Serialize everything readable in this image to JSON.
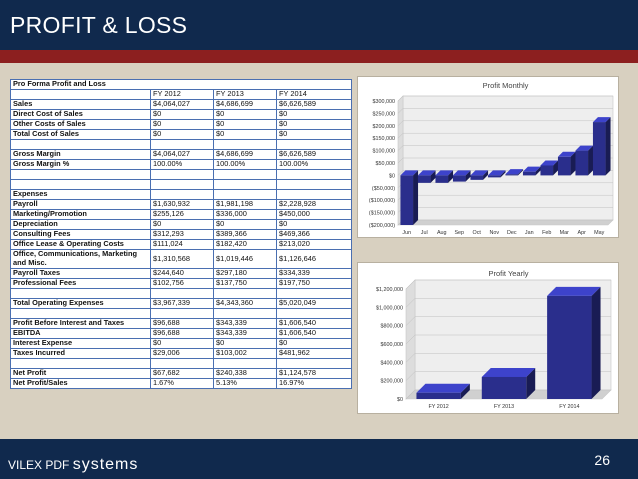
{
  "slide": {
    "title": "PROFIT & LOSS",
    "page_number": "26",
    "brand_prefix": "VILEX PDF",
    "brand_suffix": "systems",
    "colors": {
      "header": "#10294d",
      "stripe": "#8c1f1f",
      "background": "#d8d0c0",
      "bar": "#2a2e8c"
    }
  },
  "table": {
    "title": "Pro Forma Profit and Loss",
    "headers": [
      "",
      "FY 2012",
      "FY 2013",
      "FY 2014"
    ],
    "rows": [
      {
        "label": "Sales",
        "values": [
          "$4,064,027",
          "$4,686,699",
          "$6,626,589"
        ]
      },
      {
        "label": "Direct Cost of Sales",
        "values": [
          "$0",
          "$0",
          "$0"
        ]
      },
      {
        "label": "Other Costs of Sales",
        "values": [
          "$0",
          "$0",
          "$0"
        ]
      },
      {
        "label": "Total Cost of Sales",
        "values": [
          "$0",
          "$0",
          "$0"
        ]
      },
      {
        "blank": true
      },
      {
        "label": "Gross Margin",
        "values": [
          "$4,064,027",
          "$4,686,699",
          "$6,626,589"
        ]
      },
      {
        "label": "Gross Margin %",
        "values": [
          "100.00%",
          "100.00%",
          "100.00%"
        ]
      },
      {
        "blank": true
      },
      {
        "blank": true
      },
      {
        "label": "Expenses",
        "section": true,
        "values": [
          "",
          "",
          ""
        ]
      },
      {
        "label": "Payroll",
        "values": [
          "$1,630,932",
          "$1,981,198",
          "$2,228,928"
        ]
      },
      {
        "label": "Marketing/Promotion",
        "values": [
          "$255,126",
          "$336,000",
          "$450,000"
        ]
      },
      {
        "label": "Depreciation",
        "values": [
          "$0",
          "$0",
          "$0"
        ]
      },
      {
        "label": "Consulting Fees",
        "values": [
          "$312,293",
          "$389,366",
          "$469,366"
        ]
      },
      {
        "label": "Office Lease & Operating Costs",
        "values": [
          "$111,024",
          "$182,420",
          "$213,020"
        ]
      },
      {
        "label": "Office, Communications, Marketing and Misc.",
        "tall": true,
        "values": [
          "$1,310,568",
          "$1,019,446",
          "$1,126,646"
        ]
      },
      {
        "label": "Payroll Taxes",
        "values": [
          "$244,640",
          "$297,180",
          "$334,339"
        ]
      },
      {
        "label": "Professional Fees",
        "values": [
          "$102,756",
          "$137,750",
          "$197,750"
        ]
      },
      {
        "blank": true
      },
      {
        "label": "Total Operating Expenses",
        "values": [
          "$3,967,339",
          "$4,343,360",
          "$5,020,049"
        ]
      },
      {
        "blank": true
      },
      {
        "label": "Profit Before Interest and Taxes",
        "values": [
          "$96,688",
          "$343,339",
          "$1,606,540"
        ]
      },
      {
        "label": "EBITDA",
        "values": [
          "$96,688",
          "$343,339",
          "$1,606,540"
        ]
      },
      {
        "label": "Interest Expense",
        "values": [
          "$0",
          "$0",
          "$0"
        ]
      },
      {
        "label": "Taxes Incurred",
        "values": [
          "$29,006",
          "$103,002",
          "$481,962"
        ]
      },
      {
        "blank": true
      },
      {
        "label": "Net Profit",
        "values": [
          "$67,682",
          "$240,338",
          "$1,124,578"
        ]
      },
      {
        "label": "Net Profit/Sales",
        "values": [
          "1.67%",
          "5.13%",
          "16.97%"
        ]
      }
    ]
  },
  "chart_data": [
    {
      "type": "bar",
      "title": "Profit Monthly",
      "categories": [
        "Jun",
        "Jul",
        "Aug",
        "Sep",
        "Oct",
        "Nov",
        "Dec",
        "Jan",
        "Feb",
        "Mar",
        "Apr",
        "May"
      ],
      "values": [
        -200000,
        -30000,
        -30000,
        -25000,
        -18000,
        -8000,
        5000,
        15000,
        40000,
        75000,
        100000,
        215000
      ],
      "ylim": [
        -200000,
        300000
      ],
      "yticks": [
        300000,
        250000,
        200000,
        150000,
        100000,
        50000,
        0,
        -50000,
        -100000,
        -150000,
        -200000
      ],
      "ytick_labels": [
        "$300,000",
        "$250,000",
        "$200,000",
        "$150,000",
        "$100,000",
        "$50,000",
        "$0",
        "($50,000)",
        "($100,000)",
        "($150,000)",
        "($200,000)"
      ],
      "xlabel": "",
      "ylabel": ""
    },
    {
      "type": "bar",
      "title": "Profit Yearly",
      "categories": [
        "FY 2012",
        "FY 2013",
        "FY 2014"
      ],
      "values": [
        67682,
        240338,
        1124578
      ],
      "ylim": [
        0,
        1200000
      ],
      "yticks": [
        1200000,
        1000000,
        800000,
        600000,
        400000,
        200000,
        0
      ],
      "ytick_labels": [
        "$1,200,000",
        "$1,000,000",
        "$800,000",
        "$600,000",
        "$400,000",
        "$200,000",
        "$0"
      ],
      "xlabel": "",
      "ylabel": ""
    }
  ]
}
